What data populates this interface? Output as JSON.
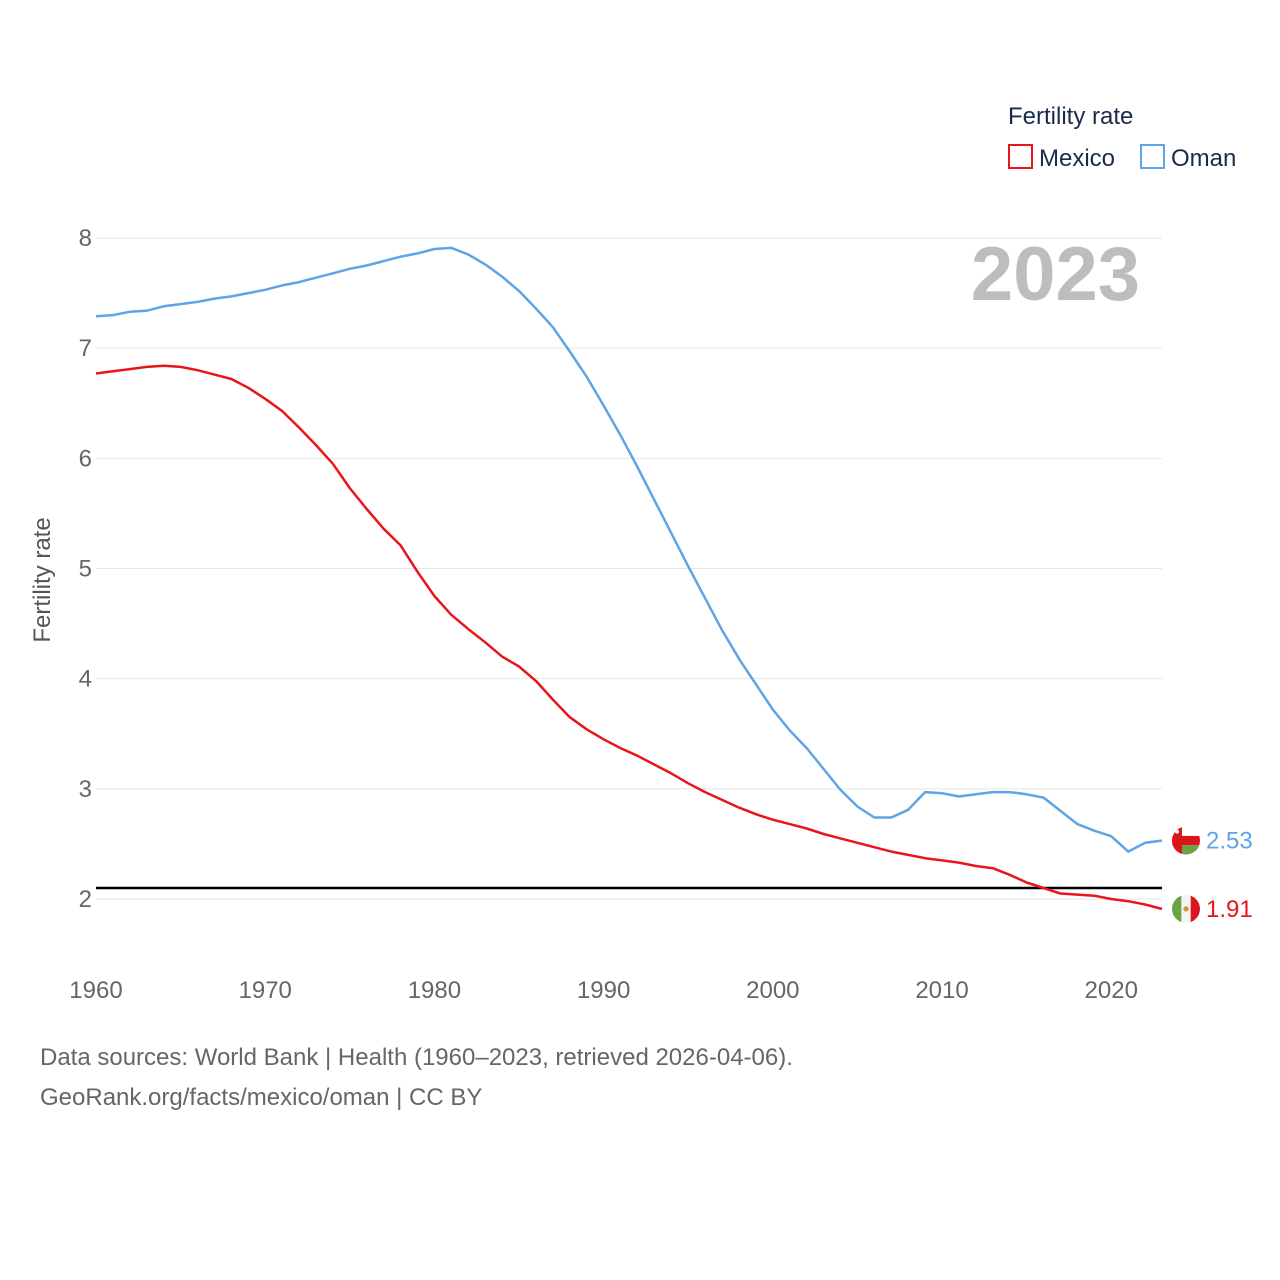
{
  "chart_data": {
    "type": "line",
    "title": "",
    "year_label": "2023",
    "xlabel": "",
    "ylabel": "Fertility rate",
    "xlim": [
      1960,
      2023
    ],
    "ylim": [
      1.6,
      8.1
    ],
    "x_ticks": [
      1960,
      1970,
      1980,
      1990,
      2000,
      2010,
      2020
    ],
    "y_ticks": [
      2,
      3,
      4,
      5,
      6,
      7,
      8
    ],
    "grid": true,
    "legend": {
      "title": "Fertility rate",
      "position": "top-right",
      "entries": [
        "Mexico",
        "Oman"
      ]
    },
    "reference_line": {
      "y": 2.1
    },
    "x": [
      1960,
      1961,
      1962,
      1963,
      1964,
      1965,
      1966,
      1967,
      1968,
      1969,
      1970,
      1971,
      1972,
      1973,
      1974,
      1975,
      1976,
      1977,
      1978,
      1979,
      1980,
      1981,
      1982,
      1983,
      1984,
      1985,
      1986,
      1987,
      1988,
      1989,
      1990,
      1991,
      1992,
      1993,
      1994,
      1995,
      1996,
      1997,
      1998,
      1999,
      2000,
      2001,
      2002,
      2003,
      2004,
      2005,
      2006,
      2007,
      2008,
      2009,
      2010,
      2011,
      2012,
      2013,
      2014,
      2015,
      2016,
      2017,
      2018,
      2019,
      2020,
      2021,
      2022,
      2023
    ],
    "series": [
      {
        "name": "Mexico",
        "color": "#e8161b",
        "end_label": "1.91",
        "flag": "mexico-flag",
        "values": [
          6.77,
          6.79,
          6.81,
          6.83,
          6.84,
          6.83,
          6.8,
          6.76,
          6.72,
          6.64,
          6.54,
          6.43,
          6.28,
          6.12,
          5.95,
          5.73,
          5.54,
          5.36,
          5.21,
          4.97,
          4.75,
          4.58,
          4.45,
          4.33,
          4.2,
          4.11,
          3.98,
          3.81,
          3.65,
          3.54,
          3.45,
          3.37,
          3.3,
          3.22,
          3.14,
          3.05,
          2.97,
          2.9,
          2.83,
          2.77,
          2.72,
          2.68,
          2.64,
          2.59,
          2.55,
          2.51,
          2.47,
          2.43,
          2.4,
          2.37,
          2.35,
          2.33,
          2.3,
          2.28,
          2.22,
          2.15,
          2.1,
          2.05,
          2.04,
          2.03,
          2.0,
          1.98,
          1.95,
          1.91
        ]
      },
      {
        "name": "Oman",
        "color": "#5ea4e6",
        "end_label": "2.53",
        "flag": "oman-flag",
        "values": [
          7.29,
          7.3,
          7.33,
          7.34,
          7.38,
          7.4,
          7.42,
          7.45,
          7.47,
          7.5,
          7.53,
          7.57,
          7.6,
          7.64,
          7.68,
          7.72,
          7.75,
          7.79,
          7.83,
          7.86,
          7.9,
          7.91,
          7.85,
          7.76,
          7.65,
          7.52,
          7.36,
          7.19,
          6.97,
          6.74,
          6.48,
          6.21,
          5.92,
          5.62,
          5.32,
          5.02,
          4.73,
          4.44,
          4.18,
          3.95,
          3.72,
          3.53,
          3.37,
          3.18,
          2.99,
          2.84,
          2.74,
          2.74,
          2.81,
          2.97,
          2.96,
          2.93,
          2.95,
          2.97,
          2.97,
          2.95,
          2.92,
          2.8,
          2.68,
          2.62,
          2.57,
          2.43,
          2.51,
          2.53
        ]
      }
    ]
  },
  "footer": {
    "line1": "Data sources: World Bank | Health (1960–2023, retrieved 2026-04-06).",
    "line2": "GeoRank.org/facts/mexico/oman | CC BY"
  }
}
